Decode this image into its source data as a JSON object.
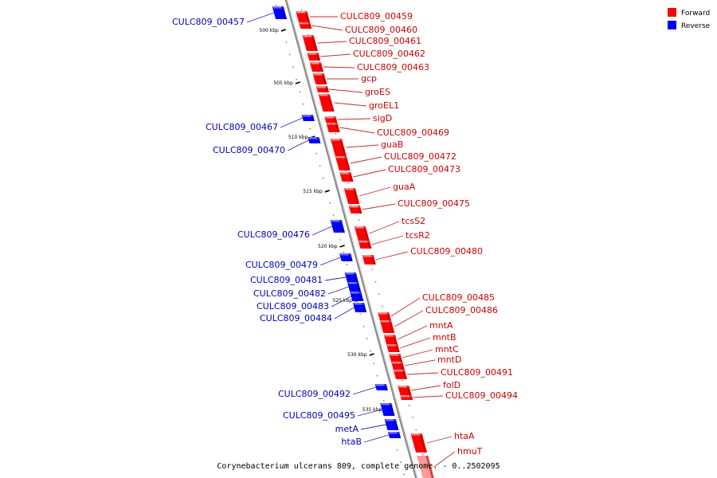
{
  "colors": {
    "forward": "#ff0000",
    "forward_dark": "#b00000",
    "forward_light": "#ff9a9a",
    "reverse": "#0000ff",
    "reverse_dark": "#000099",
    "reverse_light": "#8080ff"
  },
  "legend": {
    "forward_label": "Forward",
    "reverse_label": "Reverse"
  },
  "caption": "Corynebacterium ulcerans 809, complete genome. - 0..2502095",
  "ticks": [
    "500 kbp",
    "505 kbp",
    "510 kbp",
    "515 kbp",
    "520 kbp",
    "525 kbp",
    "530 kbp",
    "535 kbp"
  ],
  "forward_genes": [
    "CULC809_00459",
    "CULC809_00460",
    "CULC809_00461",
    "CULC809_00462",
    "CULC809_00463",
    "gcp",
    "groES",
    "groEL1",
    "sigD",
    "CULC809_00469",
    "guaB",
    "CULC809_00472",
    "CULC809_00473",
    "guaA",
    "CULC809_00475",
    "tcsS2",
    "tcsR2",
    "CULC809_00480",
    "CULC809_00485",
    "CULC809_00486",
    "mntA",
    "mntB",
    "mntC",
    "mntD",
    "CULC809_00491",
    "folD",
    "CULC809_00494",
    "htaA",
    "hmuT"
  ],
  "reverse_genes": [
    "CULC809_00457",
    "CULC809_00467",
    "CULC809_00470",
    "CULC809_00476",
    "CULC809_00479",
    "CULC809_00481",
    "CULC809_00482",
    "CULC809_00483",
    "CULC809_00484",
    "CULC809_00492",
    "CULC809_00495",
    "metA",
    "htaB"
  ]
}
